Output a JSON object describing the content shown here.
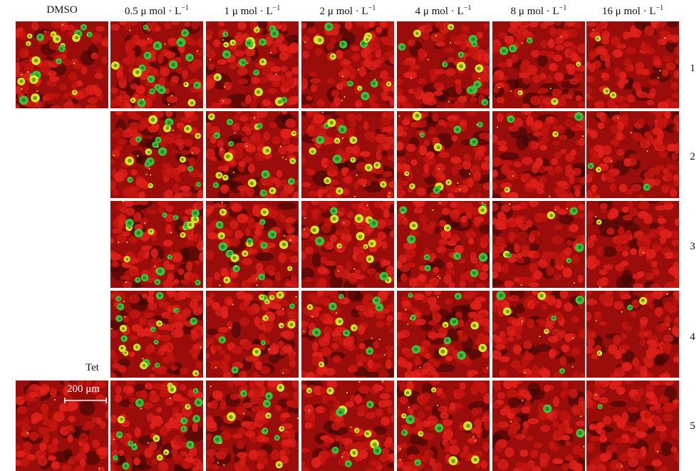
{
  "columns": [
    {
      "key": "dmso",
      "label": "DMSO",
      "sup": ""
    },
    {
      "key": "c05",
      "label": "0.5 μ mol · L",
      "sup": "−1"
    },
    {
      "key": "c1",
      "label": "1 μ mol · L",
      "sup": "−1"
    },
    {
      "key": "c2",
      "label": "2 μ mol · L",
      "sup": "−1"
    },
    {
      "key": "c4",
      "label": "4 μ mol · L",
      "sup": "−1"
    },
    {
      "key": "c8",
      "label": "8 μ mol · L",
      "sup": "−1"
    },
    {
      "key": "c16",
      "label": "16 μ mol · L",
      "sup": "−1"
    }
  ],
  "rows": [
    "1",
    "2",
    "3",
    "4",
    "5"
  ],
  "control_label": "Tet",
  "scale_bar": "200 μm",
  "colors": {
    "background_red": "#9a0d0a",
    "cell_red": "#e0201a",
    "apoptotic_green": "#3cc23a",
    "apoptotic_yellow": "#d8e820"
  },
  "green_cell_density": {
    "dmso": [
      0.9,
      null,
      null,
      null,
      0.0
    ],
    "c05": [
      0.9,
      0.9,
      0.9,
      0.8,
      0.85
    ],
    "c1": [
      0.8,
      0.8,
      0.8,
      0.6,
      0.55
    ],
    "c2": [
      0.6,
      0.65,
      0.65,
      0.5,
      0.55
    ],
    "c4": [
      0.6,
      0.5,
      0.5,
      0.5,
      0.5
    ],
    "c8": [
      0.25,
      0.2,
      0.25,
      0.3,
      0.1
    ],
    "c16": [
      0.12,
      0.15,
      0.05,
      0.15,
      0.05
    ]
  }
}
